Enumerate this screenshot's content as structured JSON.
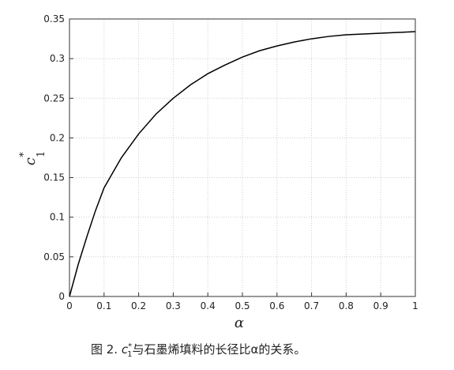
{
  "chart_data": {
    "type": "line",
    "x_label": "α",
    "y_label": {
      "base": "c",
      "sup": "*",
      "sub": "1"
    },
    "x": [
      0,
      0.025,
      0.05,
      0.075,
      0.1,
      0.15,
      0.2,
      0.25,
      0.3,
      0.35,
      0.4,
      0.45,
      0.5,
      0.55,
      0.6,
      0.65,
      0.7,
      0.75,
      0.8,
      0.85,
      0.9,
      0.95,
      1
    ],
    "series": [
      {
        "color": "#000000",
        "values": [
          0,
          0.04,
          0.075,
          0.108,
          0.137,
          0.175,
          0.205,
          0.23,
          0.25,
          0.267,
          0.281,
          0.292,
          0.302,
          0.31,
          0.316,
          0.321,
          0.325,
          0.328,
          0.33,
          0.331,
          0.332,
          0.333,
          0.334
        ]
      }
    ],
    "xlim": [
      0,
      1
    ],
    "ylim": [
      0,
      0.35
    ],
    "xticks": [
      0,
      0.1,
      0.2,
      0.3,
      0.4,
      0.5,
      0.6,
      0.7,
      0.8,
      0.9,
      1
    ],
    "yticks": [
      0,
      0.05,
      0.1,
      0.15,
      0.2,
      0.25,
      0.3,
      0.35
    ],
    "grid": true
  },
  "caption": {
    "prefix": "图 2. ",
    "base": "c",
    "sup": "*",
    "sub": "1",
    "suffix": "与石墨烯填料的长径比α的关系。"
  }
}
